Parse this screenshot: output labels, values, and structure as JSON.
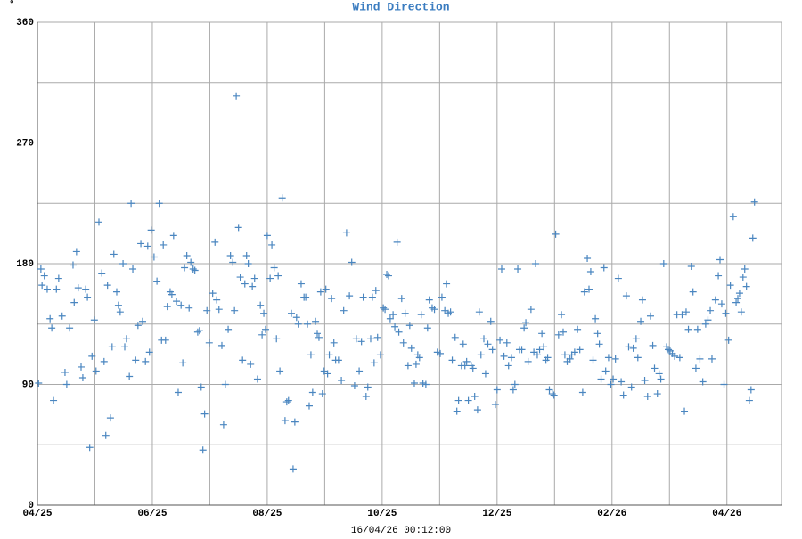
{
  "chart_data": {
    "type": "scatter",
    "title": "Wind Direction",
    "ylabel": "°",
    "footer": "16/04/26 00:12:00",
    "color": "#4a86c0",
    "grid": true,
    "xlim": [
      0,
      12.95
    ],
    "ylim": [
      0,
      360
    ],
    "xticks": [
      {
        "value": 0,
        "label": "04/25"
      },
      {
        "value": 2,
        "label": "06/25"
      },
      {
        "value": 4,
        "label": "08/25"
      },
      {
        "value": 6,
        "label": "10/25"
      },
      {
        "value": 8,
        "label": "12/25"
      },
      {
        "value": 10,
        "label": "02/26"
      },
      {
        "value": 12,
        "label": "04/26"
      }
    ],
    "x_minor_grid": [
      1,
      3,
      5,
      7,
      9,
      11
    ],
    "yticks": [
      0,
      90,
      180,
      270,
      360
    ],
    "y_minor_grid": [
      45,
      135,
      225,
      315
    ],
    "x": [
      0.02,
      0.06,
      0.08,
      0.12,
      0.17,
      0.22,
      0.25,
      0.28,
      0.33,
      0.37,
      0.43,
      0.48,
      0.51,
      0.56,
      0.62,
      0.64,
      0.68,
      0.71,
      0.76,
      0.79,
      0.84,
      0.87,
      0.91,
      0.95,
      0.99,
      1.02,
      1.07,
      1.12,
      1.16,
      1.19,
      1.22,
      1.27,
      1.3,
      1.33,
      1.38,
      1.41,
      1.44,
      1.49,
      1.52,
      1.55,
      1.6,
      1.63,
      1.66,
      1.71,
      1.75,
      1.8,
      1.83,
      1.88,
      1.92,
      1.95,
      1.98,
      2.03,
      2.08,
      2.12,
      2.16,
      2.19,
      2.23,
      2.26,
      2.31,
      2.34,
      2.37,
      2.42,
      2.45,
      2.5,
      2.53,
      2.56,
      2.6,
      2.64,
      2.67,
      2.71,
      2.74,
      2.79,
      2.82,
      2.85,
      2.88,
      2.91,
      2.95,
      2.99,
      3.05,
      3.09,
      3.12,
      3.16,
      3.21,
      3.24,
      3.27,
      3.32,
      3.36,
      3.4,
      3.43,
      3.46,
      3.5,
      3.53,
      3.57,
      3.61,
      3.64,
      3.67,
      3.71,
      3.74,
      3.78,
      3.83,
      3.88,
      3.91,
      3.94,
      3.97,
      4.0,
      4.05,
      4.08,
      4.12,
      4.16,
      4.19,
      4.22,
      4.26,
      4.31,
      4.34,
      4.37,
      4.42,
      4.45,
      4.48,
      4.51,
      4.54,
      4.59,
      4.64,
      4.67,
      4.7,
      4.73,
      4.76,
      4.79,
      4.84,
      4.87,
      4.9,
      4.93,
      4.96,
      4.99,
      5.02,
      5.05,
      5.08,
      5.12,
      5.16,
      5.19,
      5.24,
      5.29,
      5.33,
      5.38,
      5.43,
      5.47,
      5.52,
      5.55,
      5.6,
      5.64,
      5.67,
      5.72,
      5.75,
      5.8,
      5.83,
      5.86,
      5.89,
      5.92,
      5.97,
      6.02,
      6.05,
      6.08,
      6.11,
      6.14,
      6.19,
      6.22,
      6.26,
      6.29,
      6.34,
      6.37,
      6.4,
      6.45,
      6.48,
      6.51,
      6.56,
      6.59,
      6.62,
      6.65,
      6.68,
      6.71,
      6.76,
      6.79,
      6.82,
      6.87,
      6.91,
      6.96,
      7.01,
      7.04,
      7.09,
      7.12,
      7.15,
      7.19,
      7.22,
      7.27,
      7.3,
      7.33,
      7.38,
      7.41,
      7.44,
      7.47,
      7.5,
      7.55,
      7.58,
      7.61,
      7.66,
      7.69,
      7.72,
      7.77,
      7.8,
      7.84,
      7.89,
      7.92,
      7.97,
      8.0,
      8.05,
      8.08,
      8.12,
      8.17,
      8.2,
      8.25,
      8.28,
      8.31,
      8.36,
      8.39,
      8.43,
      8.47,
      8.5,
      8.54,
      8.59,
      8.64,
      8.67,
      8.7,
      8.74,
      8.78,
      8.81,
      8.85,
      8.88,
      8.91,
      8.96,
      8.99,
      9.02,
      9.07,
      9.12,
      9.15,
      9.18,
      9.22,
      9.27,
      9.3,
      9.35,
      9.4,
      9.44,
      9.49,
      9.52,
      9.57,
      9.6,
      9.63,
      9.67,
      9.71,
      9.75,
      9.78,
      9.81,
      9.86,
      9.89,
      9.94,
      9.98,
      10.02,
      10.06,
      10.11,
      10.16,
      10.2,
      10.25,
      10.29,
      10.34,
      10.37,
      10.42,
      10.45,
      10.5,
      10.53,
      10.57,
      10.62,
      10.67,
      10.71,
      10.74,
      10.79,
      10.82,
      10.85,
      10.9,
      10.95,
      10.98,
      11.01,
      11.05,
      11.09,
      11.13,
      11.18,
      11.22,
      11.26,
      11.29,
      11.33,
      11.38,
      11.41,
      11.46,
      11.49,
      11.53,
      11.58,
      11.63,
      11.67,
      11.71,
      11.74,
      11.8,
      11.85,
      11.88,
      11.91,
      11.95,
      11.98,
      12.03,
      12.06,
      12.11,
      12.16,
      12.19,
      12.22,
      12.25,
      12.28,
      12.31,
      12.34,
      12.39,
      12.42,
      12.45,
      12.48
    ],
    "values": [
      91,
      176,
      164,
      171,
      161,
      139,
      132,
      78,
      161,
      169,
      141,
      99,
      90,
      132,
      179,
      151,
      189,
      162,
      103,
      95,
      161,
      155,
      43,
      111,
      138,
      100,
      211,
      173,
      107,
      52,
      164,
      65,
      118,
      187,
      159,
      149,
      144,
      180,
      118,
      124,
      96,
      225,
      176,
      108,
      134,
      195,
      137,
      107,
      193,
      114,
      205,
      185,
      167,
      225,
      123,
      194,
      123,
      148,
      159,
      157,
      201,
      152,
      84,
      149,
      106,
      177,
      186,
      147,
      181,
      176,
      175,
      129,
      130,
      88,
      41,
      68,
      145,
      121,
      158,
      196,
      153,
      146,
      119,
      60,
      90,
      131,
      186,
      181,
      145,
      305,
      207,
      170,
      108,
      165,
      186,
      180,
      105,
      163,
      169,
      94,
      149,
      127,
      143,
      131,
      201,
      169,
      194,
      177,
      124,
      171,
      100,
      229,
      63,
      77,
      78,
      143,
      27,
      62,
      140,
      135,
      165,
      155,
      155,
      135,
      74,
      112,
      84,
      137,
      128,
      125,
      159,
      83,
      100,
      161,
      98,
      112,
      154,
      121,
      108,
      108,
      93,
      145,
      203,
      156,
      181,
      89,
      124,
      100,
      122,
      155,
      81,
      88,
      124,
      155,
      106,
      160,
      125,
      112,
      147,
      146,
      172,
      171,
      139,
      142,
      133,
      196,
      129,
      154,
      121,
      143,
      104,
      134,
      117,
      91,
      105,
      112,
      110,
      142,
      91,
      90,
      132,
      153,
      147,
      146,
      114,
      113,
      155,
      145,
      165,
      143,
      144,
      108,
      125,
      70,
      78,
      104,
      120,
      104,
      107,
      78,
      104,
      102,
      81,
      71,
      144,
      112,
      124,
      98,
      120,
      137,
      116,
      75,
      86,
      123,
      176,
      111,
      121,
      104,
      110,
      86,
      90,
      176,
      116,
      116,
      132,
      136,
      107,
      146,
      114,
      180,
      112,
      116,
      128,
      118,
      108,
      110,
      86,
      83,
      82,
      202,
      127,
      142,
      129,
      112,
      107,
      109,
      112,
      114,
      131,
      116,
      84,
      159,
      184,
      161,
      174,
      108,
      139,
      128,
      120,
      94,
      177,
      100,
      110,
      90,
      94,
      109,
      169,
      92,
      82,
      156,
      118,
      88,
      117,
      124,
      110,
      137,
      153,
      93,
      81,
      141,
      119,
      102,
      83,
      98,
      94,
      180,
      118,
      116,
      115,
      113,
      111,
      142,
      110,
      142,
      70,
      144,
      131,
      178,
      159,
      102,
      131,
      109,
      92,
      135,
      138,
      145,
      109,
      153,
      171,
      183,
      150,
      90,
      143,
      123,
      164,
      215,
      151,
      154,
      158,
      144,
      170,
      176,
      163,
      78,
      86,
      199,
      226
    ]
  }
}
